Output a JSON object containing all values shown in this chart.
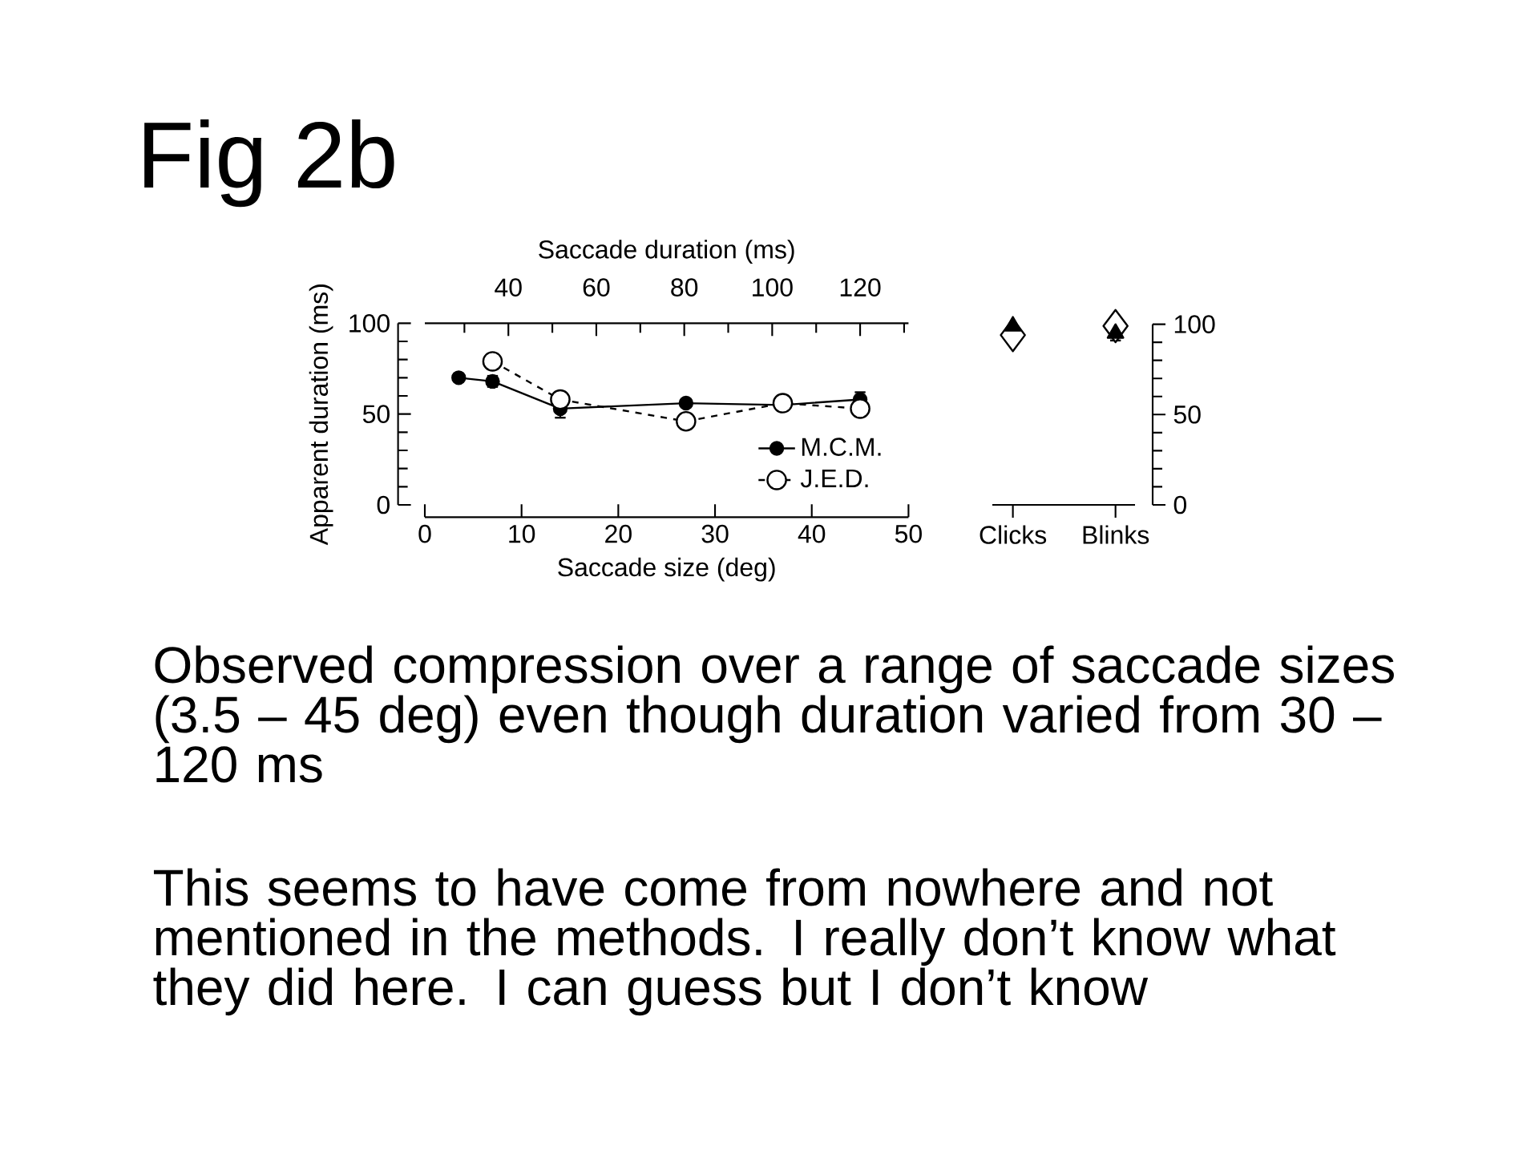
{
  "chart_data": [
    {
      "type": "line",
      "title": "Fig 2b",
      "xlabel": "Saccade size (deg)",
      "ylabel": "Apparent duration (ms)",
      "x2label": "Saccade duration (ms)",
      "xlim": [
        0,
        50
      ],
      "xticks": [
        0,
        10,
        20,
        30,
        40,
        50
      ],
      "ylim": [
        0,
        100
      ],
      "yticks": [
        0,
        {
          "value": 10,
          "label": null
        },
        {
          "value": 20,
          "label": null
        },
        {
          "value": 30,
          "label": null
        },
        {
          "value": 40,
          "label": null
        },
        50,
        {
          "value": 60,
          "label": null
        },
        {
          "value": 70,
          "label": null
        },
        {
          "value": 80,
          "label": null
        },
        {
          "value": 90,
          "label": null
        },
        100
      ],
      "x2lim": [
        21,
        131
      ],
      "x2ticks": [
        {
          "value": 30,
          "label": null
        },
        40,
        {
          "value": 50,
          "label": null
        },
        60,
        {
          "value": 70,
          "label": null
        },
        80,
        {
          "value": 90,
          "label": null
        },
        100,
        {
          "value": 110,
          "label": null
        },
        120,
        {
          "value": 130,
          "label": null
        }
      ],
      "series": [
        {
          "name": "M.C.M.",
          "color": "#000000",
          "x": [
            3.5,
            7,
            14,
            27,
            37,
            45
          ],
          "values": [
            70,
            68,
            53,
            56,
            55,
            58
          ],
          "errors": [
            2,
            3,
            5,
            2,
            3,
            4
          ],
          "marker": "circle",
          "line_style": "solid"
        },
        {
          "name": "J.E.D.",
          "color": "#000000",
          "x": [
            7,
            14,
            27,
            37,
            45
          ],
          "values": [
            79,
            58,
            46,
            56,
            53
          ],
          "marker": "circle",
          "line_style": "dashed"
        }
      ],
      "legend": "bottom right",
      "annotations": [
        "Observed compression over a range of saccade sizes (3.5 – 45 deg) even though duration varied from 30 – 120 ms",
        "This seems to have come from nowhere and not mentioned in the methods. I really don’t know what they did here. I can guess but I don’t know"
      ]
    },
    {
      "type": "scatter",
      "categories": [
        "Clicks",
        "Blinks"
      ],
      "y2lim": [
        0,
        100
      ],
      "y2ticks": [
        0,
        {
          "value": 10,
          "label": null
        },
        {
          "value": 20,
          "label": null
        },
        {
          "value": 30,
          "label": null
        },
        {
          "value": 40,
          "label": null
        },
        50,
        {
          "value": 60,
          "label": null
        },
        {
          "value": 70,
          "label": null
        },
        {
          "value": 80,
          "label": null
        },
        {
          "value": 90,
          "label": null
        },
        100
      ],
      "series": [
        {
          "color": "#000000",
          "values": [
            94,
            99
          ],
          "errors": [
            4,
            null
          ],
          "marker": "diamond",
          "axis": "y2"
        },
        {
          "color": "#000000",
          "values": [
            99,
            95
          ],
          "errors": [
            null,
            4
          ],
          "marker": "triangle",
          "axis": "y2"
        }
      ]
    }
  ]
}
